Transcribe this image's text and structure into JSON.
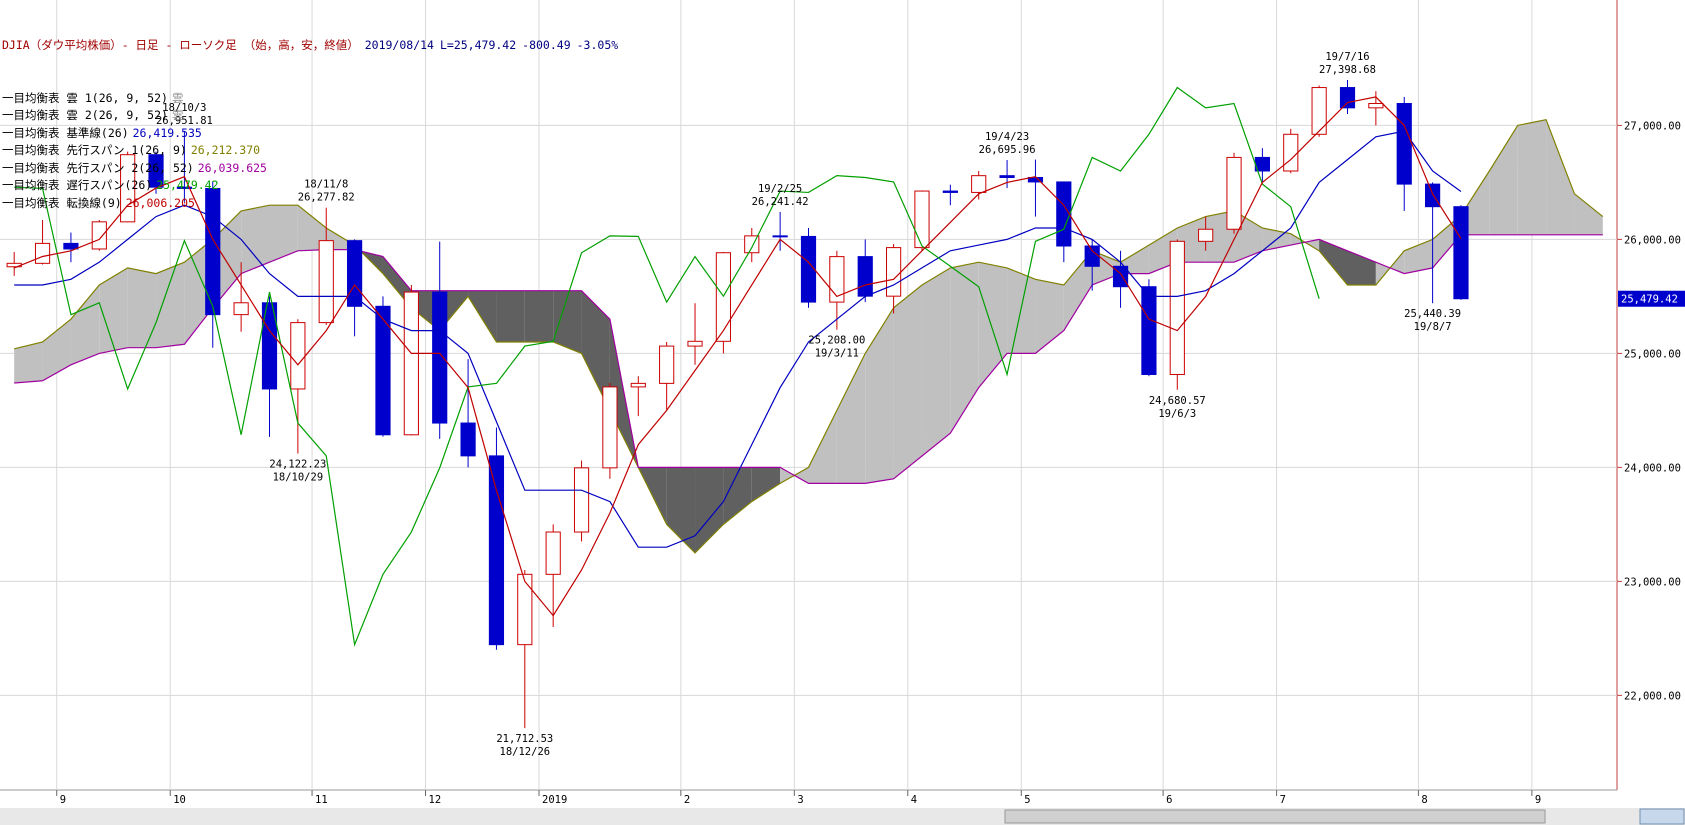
{
  "header": {
    "title": "DJIA（ダウ平均株価）- 日足 - ローソク足 （始，高，安，終値）",
    "date": "2019/08/14",
    "last": "L=25,479.42",
    "change": "-800.49",
    "change_pct": "-3.05%"
  },
  "chart_data": {
    "type": "candlestick",
    "categories": [
      null,
      null,
      "9",
      null,
      null,
      null,
      "10",
      null,
      null,
      null,
      null,
      "11",
      null,
      null,
      null,
      "12",
      null,
      null,
      null,
      "2019",
      null,
      null,
      null,
      null,
      "2",
      null,
      null,
      null,
      "3",
      null,
      null,
      null,
      "4",
      null,
      null,
      null,
      "5",
      null,
      null,
      null,
      null,
      "6",
      null,
      null,
      null,
      "7",
      null,
      null,
      null,
      null,
      "8",
      null,
      null,
      null,
      "9",
      null,
      null
    ],
    "ylim": [
      21170,
      28100
    ],
    "yticks": [
      {
        "value": 22000,
        "label": "22,000.00"
      },
      {
        "value": 23000,
        "label": "23,000.00"
      },
      {
        "value": 24000,
        "label": "24,000.00"
      },
      {
        "value": 25000,
        "label": "25,000.00"
      },
      {
        "value": 26000,
        "label": "26,000.00"
      },
      {
        "value": 27000,
        "label": "27,000.00"
      }
    ],
    "grid": true,
    "candles": {
      "up_color": "#cc0000",
      "down_color": "#0000cc",
      "open": [
        25760,
        25790,
        25965,
        25916,
        26154,
        26743,
        26458,
        26447,
        25340,
        25444,
        24688,
        25270,
        25989,
        25413,
        24286,
        25538,
        24389,
        24101,
        22445,
        23062,
        23433,
        23996,
        24706,
        24737,
        25064,
        25106,
        25883,
        26031,
        26026,
        25450,
        25849,
        25502,
        25928,
        26424,
        26412,
        26559,
        26543,
        26504,
        25942,
        25764,
        25585,
        24815,
        25983,
        26089,
        26719,
        26600,
        26922,
        27332,
        27154,
        27192,
        26485,
        26287,
        null,
        null,
        null,
        null,
        null
      ],
      "high": [
        25890,
        26170,
        26060,
        26170,
        26770,
        26770,
        26951.81,
        26510,
        25800,
        25500,
        25300,
        26277.82,
        26000,
        25500,
        25600,
        25980,
        24950,
        24350,
        23100,
        23500,
        24060,
        24740,
        24800,
        25100,
        25440,
        25890,
        26100,
        26241.42,
        26100,
        25900,
        26000,
        25960,
        26430,
        26480,
        26600,
        26695.96,
        26700,
        26500,
        26000,
        25900,
        25650,
        26000,
        26200,
        26760,
        26800,
        26970,
        27350,
        27398.68,
        27300,
        27250,
        26500,
        26300,
        null,
        null,
        null,
        null,
        null
      ],
      "low": [
        25680,
        25780,
        25800,
        25900,
        26150,
        26400,
        26330,
        25050,
        25190,
        24268,
        24122.23,
        25250,
        25150,
        24270,
        24280,
        24250,
        24000,
        22400,
        21712.53,
        22600,
        23350,
        23900,
        24450,
        24500,
        24900,
        25000,
        25800,
        25900,
        25400,
        25208.0,
        25450,
        25350,
        25900,
        26300,
        26350,
        26450,
        26200,
        25800,
        25550,
        25400,
        24800,
        24680.57,
        25900,
        26050,
        26500,
        26580,
        26900,
        27100,
        27000,
        26250,
        25440.39,
        25470,
        null,
        null,
        null,
        null,
        null
      ],
      "close": [
        25790,
        25965,
        25916,
        26154,
        26743,
        26458,
        26447,
        25340,
        25444,
        24688,
        25270,
        25989,
        25413,
        24286,
        25538,
        24389,
        24101,
        22445,
        23062,
        23433,
        23996,
        24706,
        24737,
        25064,
        25106,
        25883,
        26031,
        26026,
        25450,
        25849,
        25502,
        25928,
        26424,
        26412,
        26559,
        26543,
        26504,
        25942,
        25764,
        25585,
        24815,
        25983,
        26089,
        26719,
        26600,
        26922,
        27332,
        27154,
        27192,
        26485,
        26287,
        25479.42,
        null,
        null,
        null,
        null,
        null
      ]
    },
    "cloud": {
      "legend": [
        {
          "name": "一目均衡表 雲 1(26, 9, 52)",
          "tag": "雲"
        },
        {
          "name": "一目均衡表 雲 2(26, 9, 52)",
          "tag": "雲"
        }
      ],
      "colors": [
        "#c0c0c0",
        "#606060"
      ],
      "span1": {
        "name": "一目均衡表 先行スパン 1(26, 9)",
        "legend_value": "26,212.370",
        "color": "#808000",
        "values": [
          25040,
          25100,
          25300,
          25600,
          25750,
          25700,
          25800,
          26000,
          26250,
          26300,
          26300,
          26100,
          25950,
          25700,
          25400,
          25200,
          25500,
          25100,
          25100,
          25100,
          25000,
          24500,
          24000,
          23500,
          23250,
          23500,
          23700,
          23860,
          24000,
          24500,
          25000,
          25400,
          25600,
          25750,
          25800,
          25750,
          25650,
          25600,
          25900,
          25800,
          25950,
          26100,
          26200,
          26250,
          26100,
          26050,
          25900,
          25600,
          25600,
          25900,
          26000,
          26212,
          26600,
          27000,
          27050,
          26400,
          26200
        ]
      },
      "span2": {
        "name": "一目均衡表 先行スパン 2(26, 52)",
        "legend_value": "26,039.625",
        "color": "#a000a0",
        "values": [
          24740,
          24760,
          24900,
          25000,
          25050,
          25050,
          25080,
          25400,
          25700,
          25800,
          25900,
          25910,
          25910,
          25850,
          25550,
          25550,
          25550,
          25550,
          25550,
          25550,
          25550,
          25300,
          24000,
          24000,
          24000,
          24000,
          24000,
          24000,
          23860,
          23860,
          23860,
          23900,
          24100,
          24300,
          24700,
          25000,
          25000,
          25200,
          25600,
          25700,
          25700,
          25800,
          25800,
          25800,
          25900,
          25950,
          26000,
          25900,
          25800,
          25700,
          25750,
          26040,
          26040,
          26040,
          26040,
          26040,
          26040
        ]
      }
    },
    "series": [
      {
        "name": "一目均衡表 基準線(26)",
        "legend_value": "26,419.535",
        "color": "#0000c0",
        "values": [
          25600,
          25600,
          25650,
          25800,
          26000,
          26200,
          26300,
          26200,
          26000,
          25700,
          25500,
          25500,
          25500,
          25300,
          25200,
          25200,
          25000,
          24400,
          23800,
          23800,
          23800,
          23700,
          23300,
          23300,
          23400,
          23700,
          24200,
          24700,
          25100,
          25300,
          25500,
          25600,
          25750,
          25900,
          25950,
          26000,
          26100,
          26100,
          26000,
          25800,
          25500,
          25500,
          25550,
          25700,
          25900,
          26100,
          26500,
          26700,
          26900,
          26950,
          26600,
          26420,
          null,
          null,
          null,
          null,
          null
        ]
      },
      {
        "name": "一目均衡表 遅行スパン(26)",
        "legend_value": "25,479.42",
        "color": "#00a000",
        "values": [
          26458,
          26447,
          25340,
          25444,
          24688,
          25270,
          25989,
          25413,
          24286,
          25538,
          24389,
          24101,
          22445,
          23062,
          23433,
          23996,
          24706,
          24737,
          25064,
          25106,
          25883,
          26031,
          26026,
          25450,
          25849,
          25502,
          25928,
          26424,
          26412,
          26559,
          26543,
          26504,
          25942,
          25764,
          25585,
          24815,
          25983,
          26089,
          26719,
          26600,
          26922,
          27332,
          27154,
          27192,
          26485,
          26287,
          25479.42,
          null,
          null,
          null,
          null,
          null,
          null,
          null,
          null,
          null,
          null
        ]
      },
      {
        "name": "一目均衡表 転換線(9)",
        "legend_value": "26,006.205",
        "color": "#c00000",
        "values": [
          25750,
          25850,
          25900,
          26000,
          26300,
          26450,
          26550,
          26000,
          25600,
          25200,
          24900,
          25200,
          25600,
          25300,
          25000,
          25000,
          24700,
          23800,
          23000,
          22700,
          23100,
          23600,
          24200,
          24500,
          24850,
          25200,
          25600,
          26000,
          25800,
          25500,
          25600,
          25650,
          25900,
          26150,
          26400,
          26500,
          26550,
          26300,
          25900,
          25700,
          25300,
          25200,
          25500,
          26000,
          26500,
          26700,
          26950,
          27200,
          27250,
          27000,
          26400,
          26006,
          null,
          null,
          null,
          null,
          null
        ]
      }
    ],
    "annotations": [
      {
        "date": "18/10/3",
        "value": 26951.81,
        "value_label": "26,951.81"
      },
      {
        "date": "18/11/8",
        "value": 26277.82,
        "value_label": "26,277.82"
      },
      {
        "date": "19/2/25",
        "value": 26241.42,
        "value_label": "26,241.42"
      },
      {
        "date": "19/4/23",
        "value": 26695.96,
        "value_label": "26,695.96"
      },
      {
        "date": "19/7/16",
        "value": 27398.68,
        "value_label": "27,398.68"
      },
      {
        "date": "18/10/29",
        "value": 24122.23,
        "value_label": "24,122.23"
      },
      {
        "date": "18/12/26",
        "value": 21712.53,
        "value_label": "21,712.53"
      },
      {
        "date": "19/3/11",
        "value": 25208.0,
        "value_label": "25,208.00"
      },
      {
        "date": "19/6/3",
        "value": 24680.57,
        "value_label": "24,680.57"
      },
      {
        "date": "19/8/7",
        "value": 25440.39,
        "value_label": "25,440.39"
      }
    ],
    "last_price": {
      "value": 25479.42,
      "label": "25,479.42",
      "color": "#0000cc"
    }
  }
}
